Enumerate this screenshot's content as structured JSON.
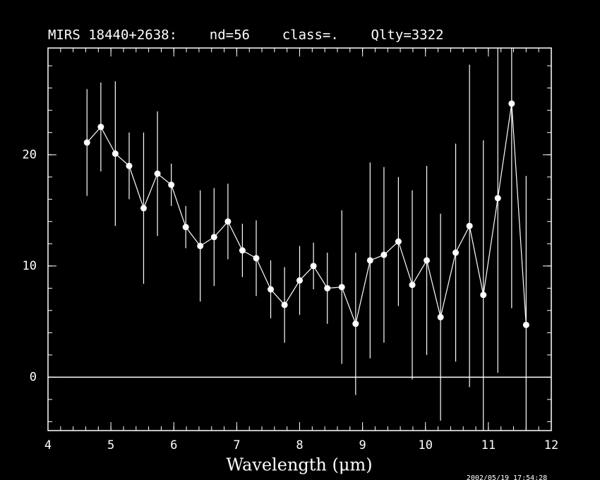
{
  "chart_data": {
    "type": "errorbar",
    "title": "MIRS 18440+2638:    nd=56    class=.    Qlty=3322",
    "x_label": "Wavelength (μm)",
    "annotation": "2002/05/19 17:54:28",
    "color": "#ffffff",
    "x": [
      4.62,
      4.84,
      5.07,
      5.29,
      5.52,
      5.74,
      5.96,
      6.19,
      6.42,
      6.64,
      6.86,
      7.09,
      7.31,
      7.54,
      7.76,
      8.0,
      8.22,
      8.44,
      8.67,
      8.89,
      9.12,
      9.34,
      9.57,
      9.79,
      10.02,
      10.24,
      10.48,
      10.7,
      10.92,
      11.15,
      11.37,
      11.6
    ],
    "values": [
      21.1,
      22.5,
      20.1,
      19.0,
      15.2,
      18.3,
      17.3,
      13.5,
      11.8,
      12.6,
      14.0,
      11.4,
      10.7,
      7.9,
      6.5,
      8.7,
      10.0,
      8.0,
      8.1,
      4.8,
      10.5,
      11.0,
      12.2,
      8.3,
      10.5,
      5.4,
      11.2,
      13.6,
      7.4,
      16.1,
      24.6,
      4.7
    ],
    "errors": [
      4.8,
      4.0,
      6.5,
      3.0,
      6.8,
      5.6,
      1.9,
      1.9,
      5.0,
      4.4,
      3.4,
      2.4,
      3.4,
      2.6,
      3.4,
      3.1,
      2.1,
      3.2,
      6.9,
      6.4,
      8.8,
      7.9,
      5.8,
      8.5,
      8.5,
      9.3,
      9.8,
      14.5,
      13.9,
      15.7,
      18.4,
      13.4
    ],
    "xlim": [
      4,
      12
    ],
    "ylim": [
      -4.8,
      29.6
    ],
    "xticks": [
      4,
      5,
      6,
      7,
      8,
      9,
      10,
      11,
      12
    ],
    "yticks": [
      0,
      10,
      20
    ]
  }
}
